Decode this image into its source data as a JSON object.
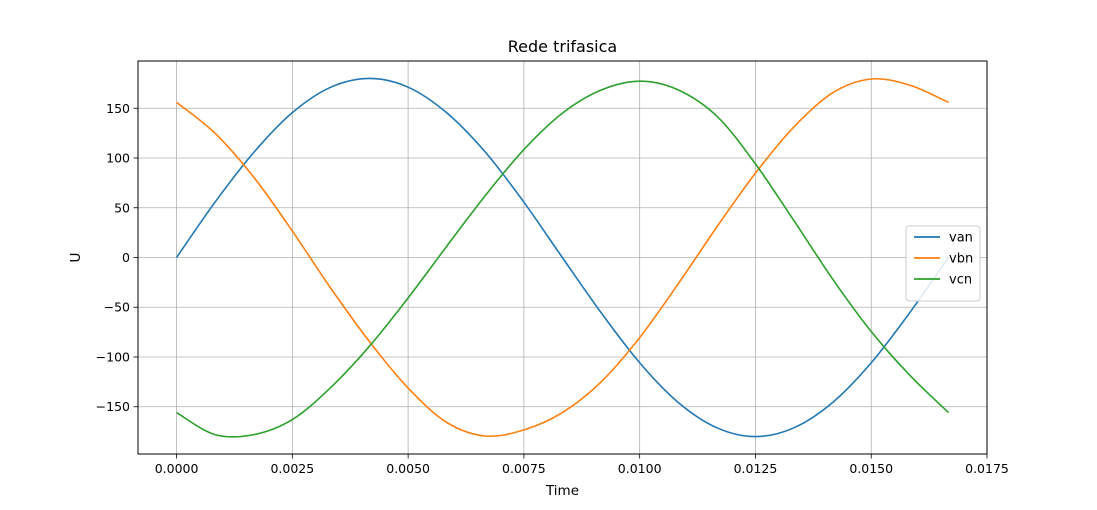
{
  "chart_data": {
    "type": "line",
    "title": "Rede trifasica",
    "xlabel": "Time",
    "ylabel": "U",
    "xlim": [
      -0.000833,
      0.0175
    ],
    "ylim": [
      -197.5,
      197.5
    ],
    "xticks": [
      0,
      0.0025,
      0.005,
      0.0075,
      0.01,
      0.0125,
      0.015,
      0.0175
    ],
    "xtick_labels": [
      "0.0000",
      "0.0025",
      "0.0050",
      "0.0075",
      "0.0100",
      "0.0125",
      "0.0150",
      "0.0175"
    ],
    "yticks": [
      -150,
      -100,
      -50,
      0,
      50,
      100,
      150
    ],
    "ytick_labels": [
      "−150",
      "−100",
      "−50",
      "0",
      "50",
      "100",
      "150"
    ],
    "grid": true,
    "legend_position": "center-right",
    "series": [
      {
        "name": "van",
        "color": "#1f77b4",
        "x": [
          0,
          0.00083,
          0.00167,
          0.0025,
          0.00333,
          0.00417,
          0.005,
          0.00583,
          0.00667,
          0.0075,
          0.00833,
          0.00917,
          0.01,
          0.01083,
          0.01167,
          0.0125,
          0.01333,
          0.01417,
          0.015,
          0.01583,
          0.01667
        ],
        "y": [
          0,
          55.6,
          105.8,
          145.6,
          171.2,
          180,
          171.2,
          145.6,
          105.8,
          55.6,
          0,
          -55.6,
          -105.8,
          -145.6,
          -171.2,
          -180,
          -171.2,
          -145.6,
          -105.8,
          -55.6,
          0
        ]
      },
      {
        "name": "vbn",
        "color": "#ff7f0e",
        "x": [
          0,
          0.00083,
          0.00167,
          0.0025,
          0.00333,
          0.00417,
          0.005,
          0.00583,
          0.00667,
          0.0075,
          0.00833,
          0.00917,
          0.01,
          0.01083,
          0.01167,
          0.0125,
          0.01333,
          0.01417,
          0.015,
          0.01583,
          0.01667
        ],
        "y": [
          155.9,
          124.9,
          80.5,
          26.6,
          -30.9,
          -84.8,
          -131.2,
          -165.6,
          -179.4,
          -173.3,
          -155.9,
          -124.9,
          -80.5,
          -26.6,
          30.9,
          84.8,
          131.2,
          165.6,
          179.4,
          173.3,
          155.9
        ]
      },
      {
        "name": "vcn",
        "color": "#2ca02c",
        "x": [
          0,
          0.00083,
          0.00167,
          0.0025,
          0.00333,
          0.00417,
          0.005,
          0.00583,
          0.00667,
          0.0075,
          0.00833,
          0.00917,
          0.01,
          0.01083,
          0.01167,
          0.0125,
          0.01333,
          0.01417,
          0.015,
          0.01583,
          0.01667
        ],
        "y": [
          -155.9,
          -178.0,
          -178.0,
          -162.9,
          -130.6,
          -88.9,
          -40.6,
          11.1,
          62.4,
          108.5,
          145.0,
          168.3,
          177.2,
          168.5,
          141.9,
          94.1,
          37.1,
          -21.9,
          -74.4,
          -118.2,
          -155.9
        ]
      }
    ]
  }
}
